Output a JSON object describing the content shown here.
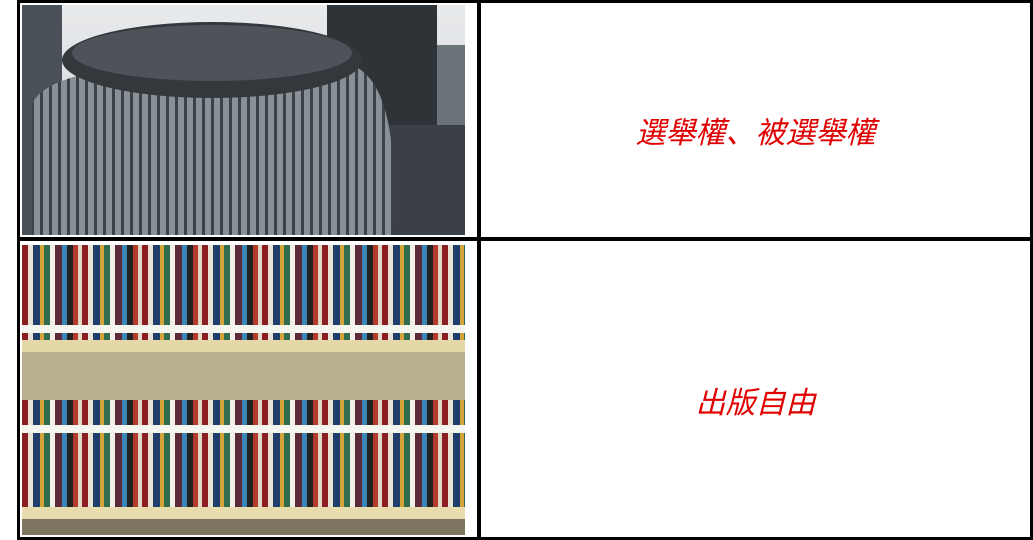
{
  "table": {
    "rows": [
      {
        "text": "選舉權、被選舉權"
      },
      {
        "text": "出版自由"
      }
    ]
  }
}
